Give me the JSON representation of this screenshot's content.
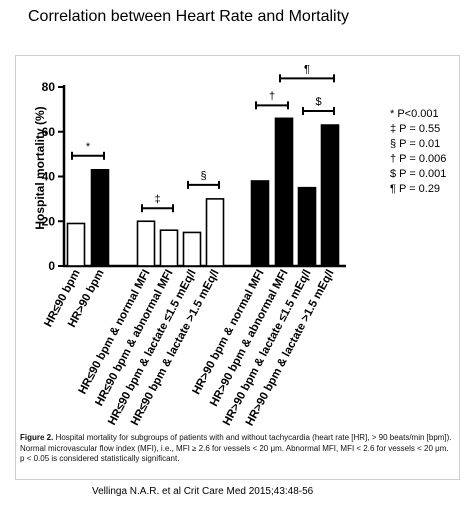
{
  "slide": {
    "title": "Correlation between Heart Rate and Mortality",
    "citation": "Vellinga N.A.R. et al Crit Care Med 2015;43:48-56"
  },
  "figure": {
    "caption_label": "Figure 2.",
    "caption_text": "Hospital mortality for subgroups of patients with and without tachycardia (heart rate [HR], > 90 beats/min [bpm]). Normal microvascular flow index (MFI), i.e., MFI ≥ 2.6 for vessels < 20 μm. Abnormal MFI, MFI < 2.6 for vessels < 20 μm. p < 0.05 is considered statistically significant."
  },
  "legend": [
    "* P<0.001",
    "‡ P = 0.55",
    "§ P = 0.01",
    "† P = 0.006",
    "$ P = 0.001",
    "¶ P = 0.29"
  ],
  "chart_data": {
    "type": "bar",
    "title": "",
    "xlabel": "",
    "ylabel": "Hospital mortality (%)",
    "ylim": [
      0,
      80
    ],
    "yticks": [
      0,
      20,
      40,
      60,
      80
    ],
    "grid": false,
    "legend_placement": "right",
    "categories": [
      "HR≤90 bpm",
      "HR>90 bpm",
      "HR≤90 bpm & normal MFI",
      "HR≤90 bpm & abnormal MFI",
      "HR≤90 bpm & lactate ≤1.5 mEq/l",
      "HR≤90 bpm & lactate >1.5 mEq/l",
      "HR>90 bpm & normal MFI",
      "HR>90 bpm & abnormal MFI",
      "HR>90 bpm & lactate ≤1.5 mEq/l",
      "HR>90 bpm & lactate >1.5 mEq/l"
    ],
    "values": [
      19,
      43,
      20,
      16,
      15,
      30,
      38,
      66,
      35,
      63
    ],
    "bar_fill": [
      "white",
      "black",
      "white",
      "white",
      "white",
      "white",
      "black",
      "black",
      "black",
      "black"
    ],
    "significance_brackets": [
      {
        "from": 0,
        "to": 1,
        "symbol": "*"
      },
      {
        "from": 2,
        "to": 3,
        "symbol": "‡"
      },
      {
        "from": 4,
        "to": 5,
        "symbol": "§"
      },
      {
        "from": 6,
        "to": 7,
        "symbol": "†"
      },
      {
        "from": 8,
        "to": 9,
        "symbol": "$"
      },
      {
        "from": 7,
        "to": 9,
        "symbol": "¶"
      }
    ],
    "colors": {
      "filled": "#000000",
      "open": "#ffffff",
      "stroke": "#000000"
    }
  }
}
